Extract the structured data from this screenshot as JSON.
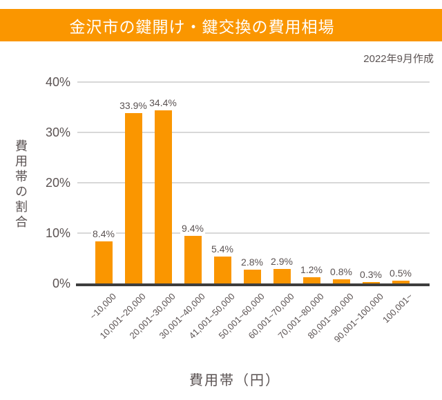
{
  "header": {
    "title": "金沢市の鍵開け・鍵交換の費用相場",
    "date_note": "2022年9月作成"
  },
  "colors": {
    "accent_orange": "#FA9600",
    "text_gray": "#5A5252",
    "gridline_gray": "#D8D8D8",
    "axis_dark": "#3D3D3D",
    "background": "#FFFFFF",
    "title_text": "#FFFFFF"
  },
  "chart_data": {
    "type": "bar",
    "title": "金沢市の鍵開け・鍵交換の費用相場",
    "subtitle": "2022年9月作成",
    "categories": [
      "~10,000",
      "10,001~20,000",
      "20,001~30,000",
      "30,001~40,000",
      "41,001~50,000",
      "50,001~60,000",
      "60,001~70,000",
      "70,001~80,000",
      "80,001~90,000",
      "90,001~100,000",
      "100,001~"
    ],
    "values": [
      8.4,
      33.9,
      34.4,
      9.4,
      5.4,
      2.8,
      2.9,
      1.2,
      0.8,
      0.3,
      0.5
    ],
    "value_labels": [
      "8.4%",
      "33.9%",
      "34.4%",
      "9.4%",
      "5.4%",
      "2.8%",
      "2.9%",
      "1.2%",
      "0.8%",
      "0.3%",
      "0.5%"
    ],
    "xlabel": "費用帯（円）",
    "ylabel": "費用帯の割合",
    "y_ticks": [
      0,
      10,
      20,
      30,
      40
    ],
    "y_tick_labels": [
      "0%",
      "10%",
      "20%",
      "30%",
      "40%"
    ],
    "ylim": [
      0,
      40
    ],
    "grid": true,
    "legend": "none",
    "bar_color": "#FA9600"
  }
}
